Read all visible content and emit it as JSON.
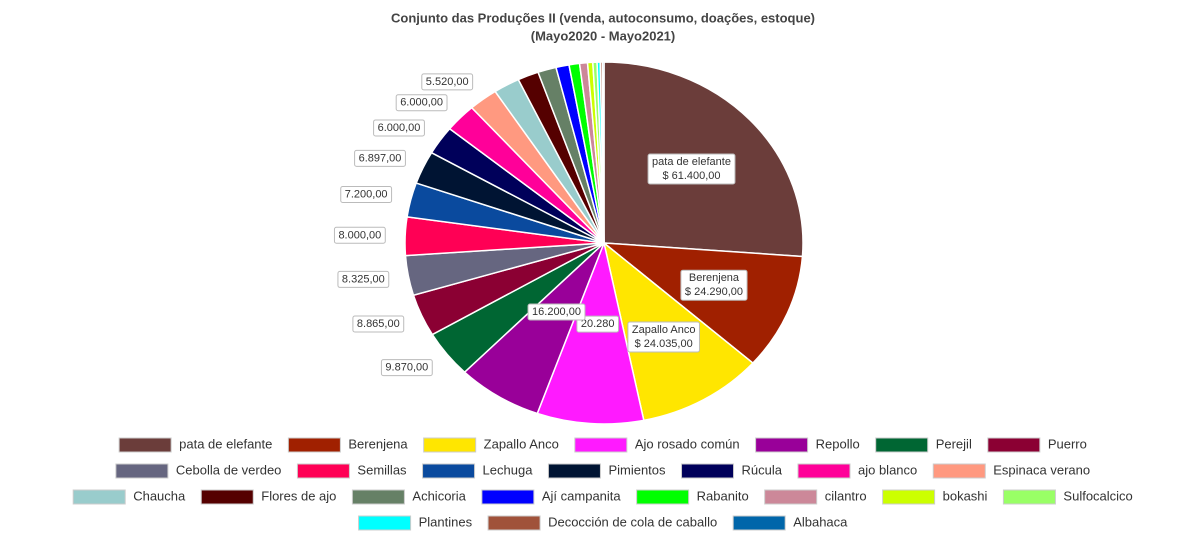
{
  "chart_data": {
    "type": "pie",
    "title": "Conjunto das Produções II (venda, autoconsumo, doações, estoque)",
    "subtitle": "(Mayo2020 - Mayo2021)",
    "categories": [
      "pata de elefante",
      "Berenjena",
      "Zapallo Anco",
      "Ajo rosado común",
      "Repollo",
      "Perejil",
      "Puerro",
      "Cebolla de verdeo",
      "Semillas",
      "Lechuga",
      "Pimientos",
      "Rúcula",
      "ajo blanco",
      "Espinaca verano",
      "Chaucha",
      "Flores de ajo",
      "Achicoria",
      "Ají campanita",
      "Rabanito",
      "cilantro",
      "bokashi",
      "Sulfocalcico",
      "Plantines",
      "Decocción de cola de caballo",
      "Albahaca"
    ],
    "values": [
      61400,
      24290,
      24035,
      20280,
      16200,
      9870,
      8865,
      8325,
      8000,
      7200,
      6897,
      6000,
      6000,
      5520,
      5000,
      4000,
      3500,
      2500,
      2000,
      1500,
      1000,
      800,
      600,
      400,
      300
    ],
    "value_labels": [
      "$ 61.400,00",
      "$ 24.290,00",
      "$ 24.035,00",
      "20.280",
      "16.200,00",
      "9.870,00",
      "8.865,00",
      "8.325,00",
      "8.000,00",
      "7.200,00",
      "6.897,00",
      "6.000,00",
      "6.000,00",
      "5.520,00",
      null,
      null,
      null,
      null,
      null,
      null,
      null,
      null,
      null,
      null,
      null
    ],
    "colors": [
      "#6b3d3a",
      "#a02000",
      "#ffe600",
      "#ff1aff",
      "#990099",
      "#006633",
      "#8b0033",
      "#666680",
      "#ff0055",
      "#0a4a9e",
      "#001433",
      "#00005a",
      "#ff0099",
      "#ff9980",
      "#99cccc",
      "#550000",
      "#668066",
      "#0000ff",
      "#00ff00",
      "#cc8899",
      "#ccff00",
      "#99ff66",
      "#00ffff",
      "#a0523a",
      "#0066aa"
    ],
    "legend": "bottom"
  }
}
